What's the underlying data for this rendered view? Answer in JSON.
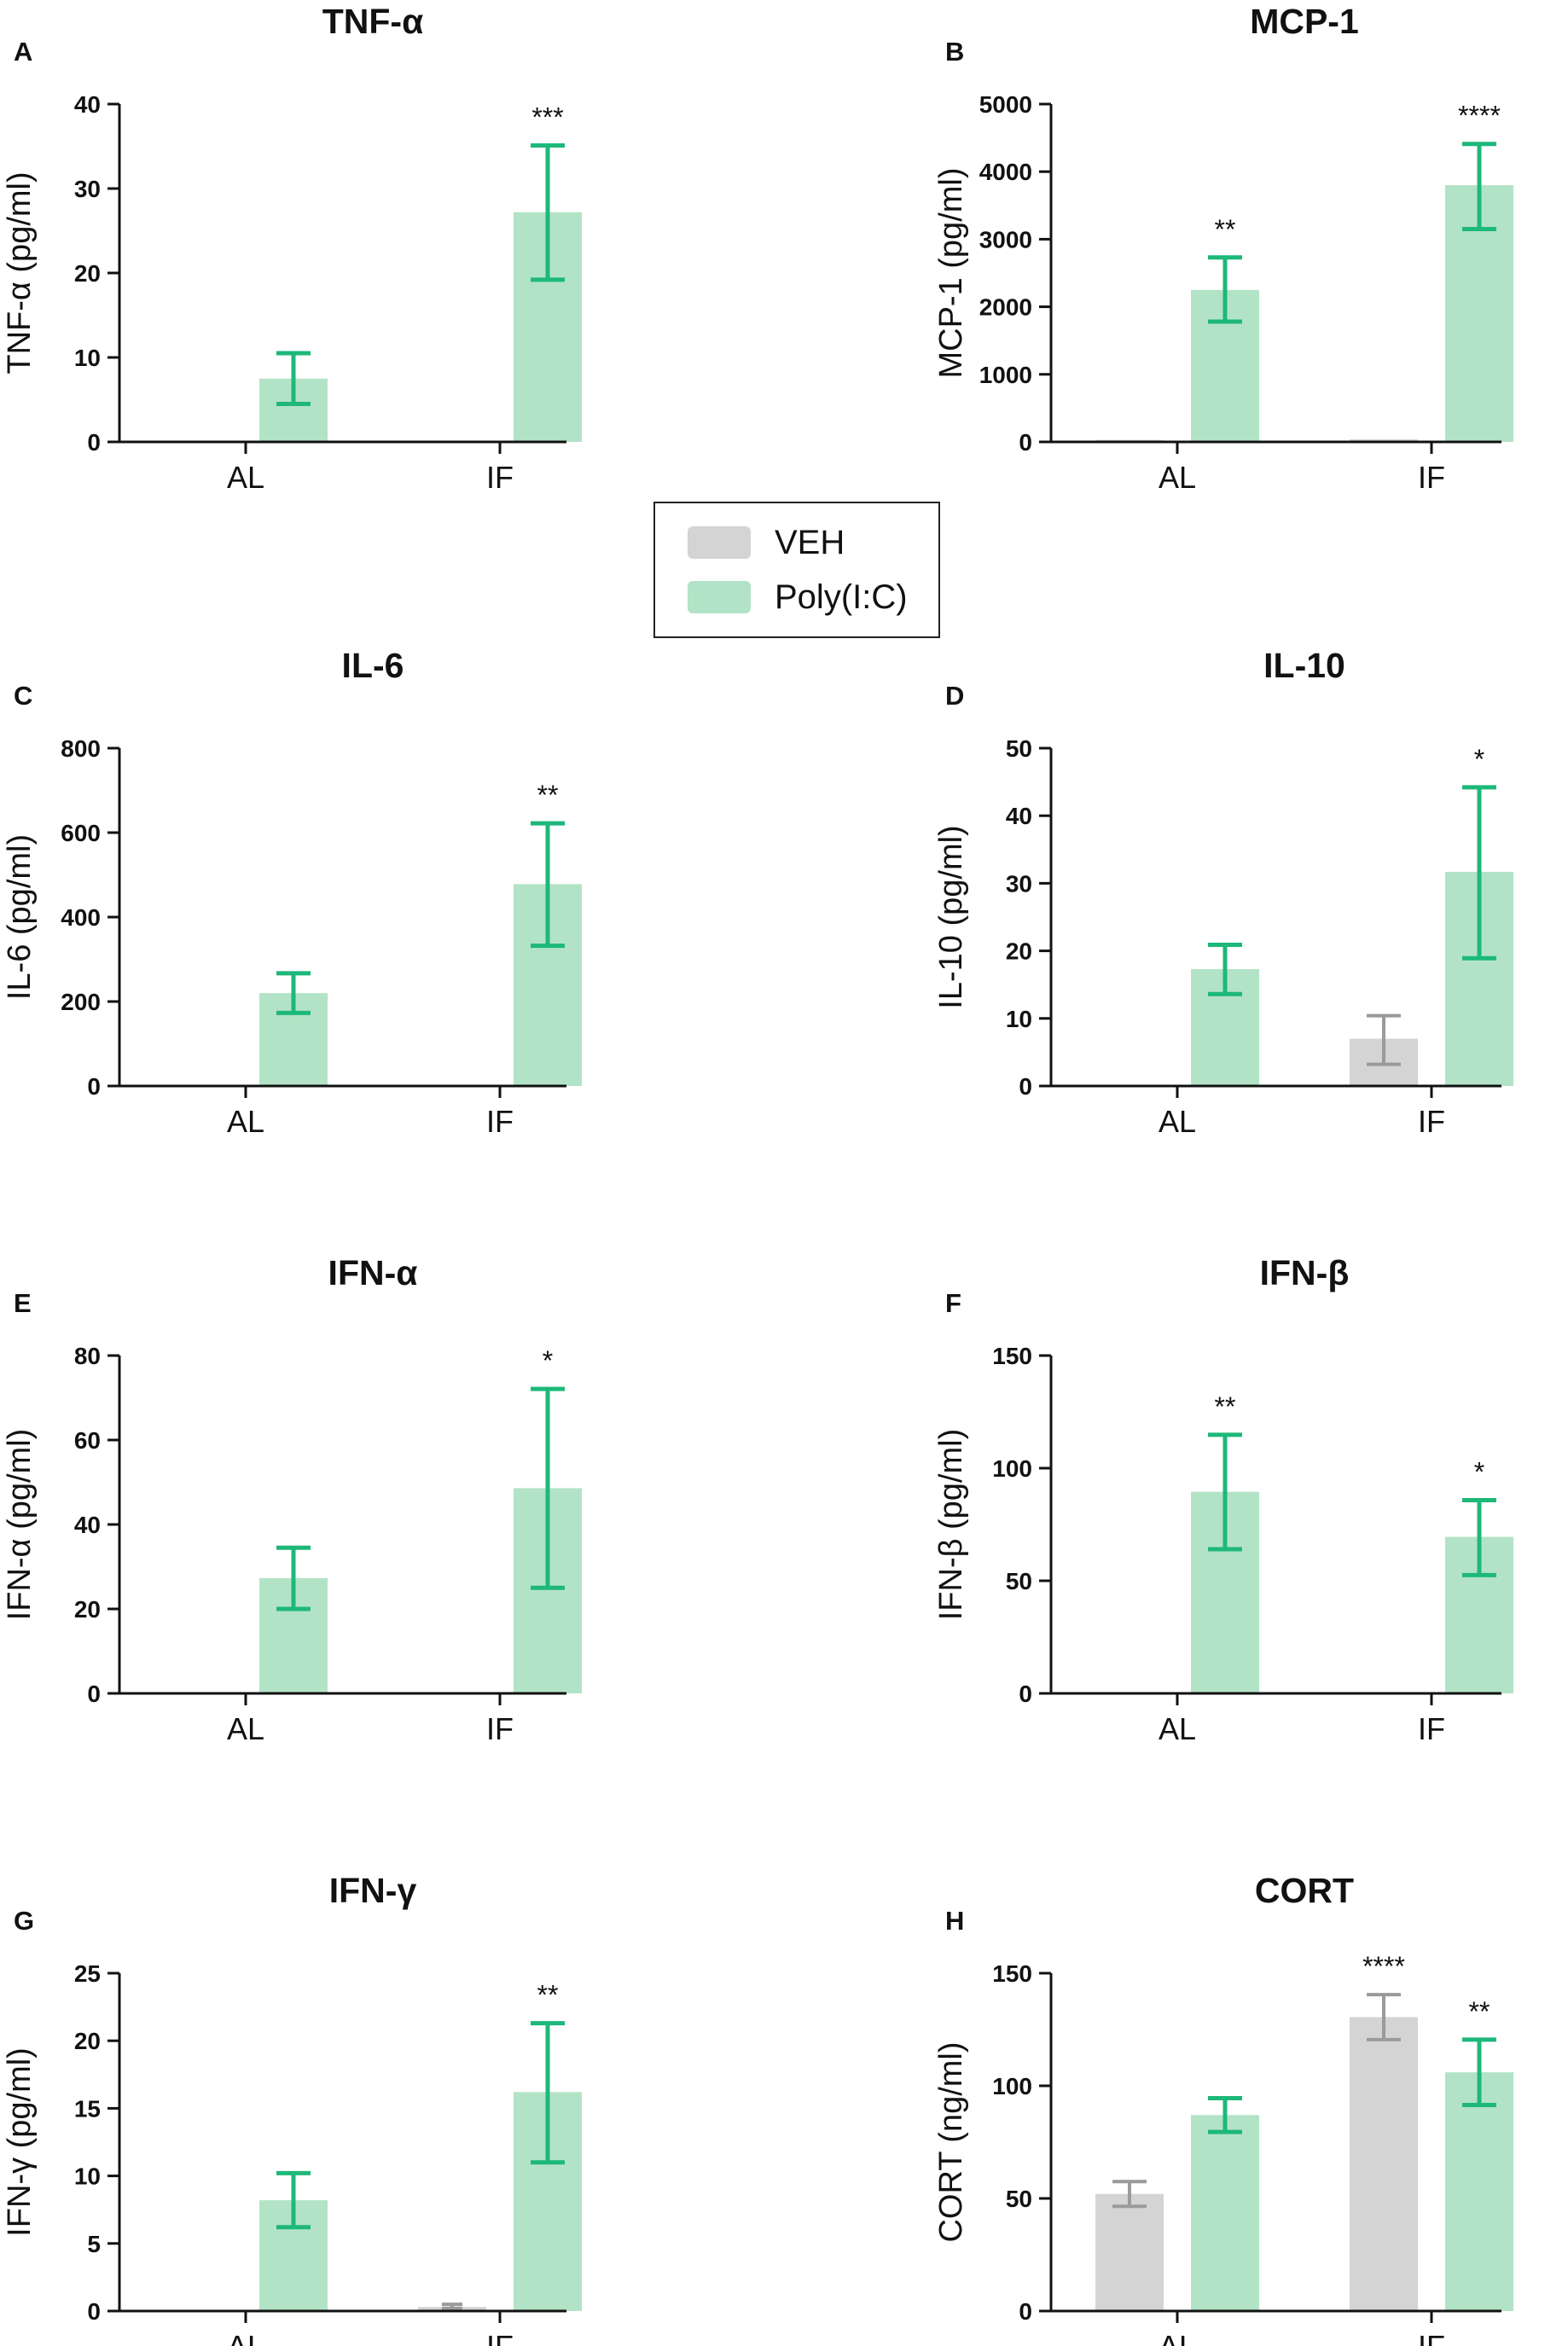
{
  "colors": {
    "veh_bar": "#d4d4d4",
    "veh_err": "#9a9a9a",
    "poly_bar": "#b3e3c6",
    "poly_err": "#1db87a",
    "axis": "#111111"
  },
  "legend": {
    "items": [
      {
        "label": "VEH",
        "color": "#d4d4d4"
      },
      {
        "label": "Poly(I:C)",
        "color": "#b3e3c6"
      }
    ]
  },
  "chart_data": [
    {
      "type": "bar",
      "panel": "A",
      "title": "TNF-α",
      "ylabel": "TNF-α (pg/ml)",
      "categories": [
        "AL",
        "IF"
      ],
      "ylim": [
        0,
        40
      ],
      "yticks": [
        0,
        10,
        20,
        30,
        40
      ],
      "series": [
        {
          "name": "VEH",
          "values": [
            0,
            0
          ],
          "err_low": [
            0,
            0
          ],
          "err_high": [
            0,
            0
          ]
        },
        {
          "name": "Poly(I:C)",
          "values": [
            7.5,
            27.2
          ],
          "err_low": [
            4.5,
            19.2
          ],
          "err_high": [
            10.5,
            35.1
          ]
        }
      ],
      "annotations": [
        {
          "category": "IF",
          "series": "Poly(I:C)",
          "text": "***"
        }
      ]
    },
    {
      "type": "bar",
      "panel": "B",
      "title": "MCP-1",
      "ylabel": "MCP-1 (pg/ml)",
      "categories": [
        "AL",
        "IF"
      ],
      "ylim": [
        0,
        5000
      ],
      "yticks": [
        0,
        1000,
        2000,
        3000,
        4000,
        5000
      ],
      "series": [
        {
          "name": "VEH",
          "values": [
            30,
            40
          ],
          "err_low": [
            30,
            40
          ],
          "err_high": [
            30,
            40
          ]
        },
        {
          "name": "Poly(I:C)",
          "values": [
            2250,
            3800
          ],
          "err_low": [
            1780,
            3150
          ],
          "err_high": [
            2730,
            4410
          ]
        }
      ],
      "annotations": [
        {
          "category": "AL",
          "series": "Poly(I:C)",
          "text": "**"
        },
        {
          "category": "IF",
          "series": "Poly(I:C)",
          "text": "****"
        }
      ]
    },
    {
      "type": "bar",
      "panel": "C",
      "title": "IL-6",
      "ylabel": "IL-6 (pg/ml)",
      "categories": [
        "AL",
        "IF"
      ],
      "ylim": [
        0,
        800
      ],
      "yticks": [
        0,
        200,
        400,
        600,
        800
      ],
      "series": [
        {
          "name": "VEH",
          "values": [
            0,
            0
          ],
          "err_low": [
            0,
            0
          ],
          "err_high": [
            0,
            0
          ]
        },
        {
          "name": "Poly(I:C)",
          "values": [
            220,
            478
          ],
          "err_low": [
            173,
            332
          ],
          "err_high": [
            267,
            622
          ]
        }
      ],
      "annotations": [
        {
          "category": "IF",
          "series": "Poly(I:C)",
          "text": "**"
        }
      ]
    },
    {
      "type": "bar",
      "panel": "D",
      "title": "IL-10",
      "ylabel": "IL-10 (pg/ml)",
      "categories": [
        "AL",
        "IF"
      ],
      "ylim": [
        0,
        50
      ],
      "yticks": [
        0,
        10,
        20,
        30,
        40,
        50
      ],
      "series": [
        {
          "name": "VEH",
          "values": [
            0,
            7
          ],
          "err_low": [
            0,
            3.2
          ],
          "err_high": [
            0,
            10.4
          ]
        },
        {
          "name": "Poly(I:C)",
          "values": [
            17.3,
            31.7
          ],
          "err_low": [
            13.6,
            18.9
          ],
          "err_high": [
            20.9,
            44.2
          ]
        }
      ],
      "annotations": [
        {
          "category": "IF",
          "series": "Poly(I:C)",
          "text": "*"
        }
      ]
    },
    {
      "type": "bar",
      "panel": "E",
      "title": "IFN-α",
      "ylabel": "IFN-α (pg/ml)",
      "categories": [
        "AL",
        "IF"
      ],
      "ylim": [
        0,
        80
      ],
      "yticks": [
        0,
        20,
        40,
        60,
        80
      ],
      "series": [
        {
          "name": "VEH",
          "values": [
            0,
            0
          ],
          "err_low": [
            0,
            0
          ],
          "err_high": [
            0,
            0
          ]
        },
        {
          "name": "Poly(I:C)",
          "values": [
            27.3,
            48.6
          ],
          "err_low": [
            20.0,
            25.0
          ],
          "err_high": [
            34.5,
            72.1
          ]
        }
      ],
      "annotations": [
        {
          "category": "IF",
          "series": "Poly(I:C)",
          "text": "*"
        }
      ]
    },
    {
      "type": "bar",
      "panel": "F",
      "title": "IFN-β",
      "ylabel": "IFN-β (pg/ml)",
      "categories": [
        "AL",
        "IF"
      ],
      "ylim": [
        0,
        150
      ],
      "yticks": [
        0,
        50,
        100,
        150
      ],
      "series": [
        {
          "name": "VEH",
          "values": [
            0,
            0
          ],
          "err_low": [
            0,
            0
          ],
          "err_high": [
            0,
            0
          ]
        },
        {
          "name": "Poly(I:C)",
          "values": [
            89.5,
            69.5
          ],
          "err_low": [
            64.0,
            52.5
          ],
          "err_high": [
            114.8,
            85.8
          ]
        }
      ],
      "annotations": [
        {
          "category": "AL",
          "series": "Poly(I:C)",
          "text": "**"
        },
        {
          "category": "IF",
          "series": "Poly(I:C)",
          "text": "*"
        }
      ]
    },
    {
      "type": "bar",
      "panel": "G",
      "title": "IFN-γ",
      "ylabel": "IFN-γ (pg/ml)",
      "categories": [
        "AL",
        "IF"
      ],
      "ylim": [
        0,
        25
      ],
      "yticks": [
        0,
        5,
        10,
        15,
        20,
        25
      ],
      "series": [
        {
          "name": "VEH",
          "values": [
            0,
            0.3
          ],
          "err_low": [
            0,
            0.2
          ],
          "err_high": [
            0,
            0.5
          ]
        },
        {
          "name": "Poly(I:C)",
          "values": [
            8.2,
            16.2
          ],
          "err_low": [
            6.2,
            11.0
          ],
          "err_high": [
            10.2,
            21.3
          ]
        }
      ],
      "annotations": [
        {
          "category": "IF",
          "series": "Poly(I:C)",
          "text": "**"
        }
      ]
    },
    {
      "type": "bar",
      "panel": "H",
      "title": "CORT",
      "ylabel": "CORT (ng/ml)",
      "categories": [
        "AL",
        "IF"
      ],
      "ylim": [
        0,
        150
      ],
      "yticks": [
        0,
        50,
        100,
        150
      ],
      "series": [
        {
          "name": "VEH",
          "values": [
            52,
            130.5
          ],
          "err_low": [
            46.5,
            120.5
          ],
          "err_high": [
            57.5,
            140.5
          ]
        },
        {
          "name": "Poly(I:C)",
          "values": [
            87,
            106
          ],
          "err_low": [
            79.5,
            91.5
          ],
          "err_high": [
            94.5,
            120.5
          ]
        }
      ],
      "annotations": [
        {
          "category": "IF",
          "series": "VEH",
          "text": "****"
        },
        {
          "category": "IF",
          "series": "Poly(I:C)",
          "text": "**"
        }
      ]
    }
  ]
}
